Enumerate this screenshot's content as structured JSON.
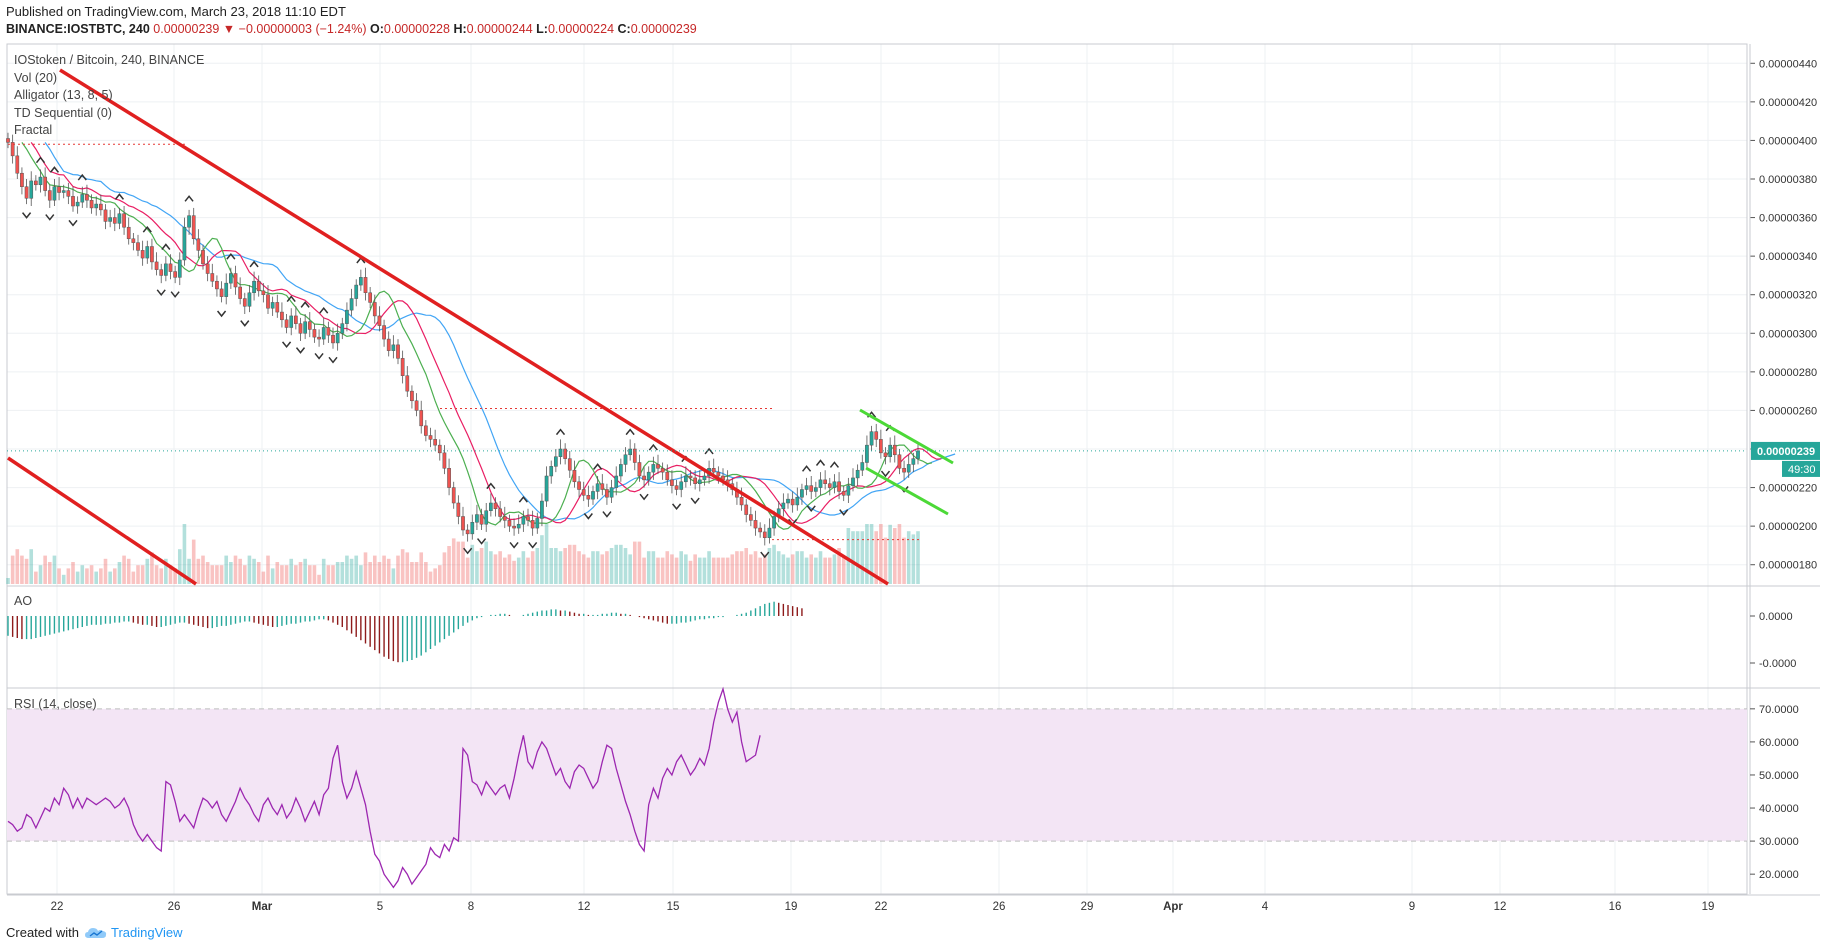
{
  "header": {
    "published": "Published on TradingView.com, March 23, 2018 11:10 EDT",
    "symbol": "BINANCE:IOSTBTC, 240",
    "last": "0.00000239",
    "change": "▼ −0.00000003 (−1.24%)",
    "o_label": "O:",
    "o": "0.00000228",
    "h_label": "H:",
    "h": "0.00000244",
    "l_label": "L:",
    "l": "0.00000224",
    "c_label": "C:",
    "c": "0.00000239"
  },
  "legend": {
    "title": "IOStoken / Bitcoin, 240, BINANCE",
    "vol": "Vol (20)",
    "alligator": "Alligator (13, 8, 5)",
    "td": "TD Sequential (0)",
    "fractal": "Fractal"
  },
  "panes": {
    "ao": "AO",
    "rsi": "RSI (14, close)"
  },
  "footer": {
    "created": "Created with",
    "brand": "TradingView"
  },
  "price_tag": {
    "value": "0.00000239",
    "timer": "49:30"
  },
  "colors": {
    "up": "#26a69a",
    "down": "#ef5350",
    "trendline": "#e02020",
    "channel": "#4cd937",
    "alligator_jaw": "#42a5f5",
    "alligator_teeth": "#e91e63",
    "alligator_lips": "#4caf50",
    "rsi_line": "#9c27b0",
    "rsi_band": "#f3e5f5",
    "td_up": "#1b8a2e",
    "td_down": "#d32f2f"
  },
  "chart_data": {
    "type": "candlestick",
    "price_axis": {
      "ylim": [
        1.7e-06,
        4.5e-06
      ],
      "ticks": [
        "0.00000180",
        "0.00000200",
        "0.00000220",
        "0.00000240",
        "0.00000260",
        "0.00000280",
        "0.00000300",
        "0.00000320",
        "0.00000340",
        "0.00000360",
        "0.00000380",
        "0.00000400",
        "0.00000420",
        "0.00000440"
      ]
    },
    "ao_axis": {
      "ticks": [
        "0.0000",
        "-0.0000"
      ]
    },
    "rsi_axis": {
      "ylim": [
        14,
        76
      ],
      "ticks": [
        "20.0000",
        "30.0000",
        "40.0000",
        "50.0000",
        "60.0000",
        "70.0000"
      ],
      "bands": [
        30,
        70
      ]
    },
    "x_ticks": [
      "22",
      "26",
      "Mar",
      "5",
      "8",
      "12",
      "15",
      "19",
      "22",
      "26",
      "29",
      "Apr",
      "4",
      "9",
      "12",
      "16",
      "19"
    ],
    "close_series": [
      399,
      392,
      383,
      376,
      370,
      379,
      377,
      381,
      374,
      369,
      376,
      373,
      374,
      371,
      366,
      368,
      372,
      369,
      365,
      367,
      364,
      358,
      360,
      357,
      362,
      355,
      349,
      347,
      343,
      339,
      345,
      337,
      333,
      330,
      336,
      332,
      329,
      338,
      355,
      361,
      349,
      343,
      336,
      331,
      327,
      323,
      319,
      326,
      331,
      324,
      318,
      314,
      321,
      327,
      322,
      320,
      313,
      316,
      311,
      307,
      303,
      309,
      305,
      300,
      306,
      302,
      298,
      297,
      303,
      299,
      295,
      300,
      305,
      312,
      318,
      325,
      329,
      321,
      316,
      309,
      304,
      297,
      291,
      294,
      287,
      278,
      270,
      265,
      260,
      252,
      247,
      245,
      242,
      238,
      230,
      220,
      212,
      205,
      198,
      196,
      202,
      206,
      201,
      208,
      212,
      209,
      205,
      203,
      200,
      199,
      201,
      205,
      203,
      199,
      204,
      213,
      226,
      231,
      236,
      240,
      235,
      229,
      223,
      219,
      216,
      214,
      218,
      222,
      219,
      215,
      220,
      226,
      232,
      237,
      240,
      233,
      226,
      224,
      228,
      232,
      230,
      228,
      224,
      221,
      219,
      223,
      226,
      225,
      222,
      224,
      226,
      230,
      228,
      226,
      224,
      222,
      219,
      215,
      211,
      206,
      203,
      199,
      197,
      194,
      199,
      205,
      209,
      212,
      214,
      211,
      215,
      219,
      221,
      218,
      220,
      224,
      222,
      220,
      223,
      218,
      216,
      221,
      225,
      229,
      233,
      242,
      249,
      245,
      238,
      236,
      242,
      237,
      230,
      228,
      232,
      235,
      239
    ],
    "ao_series": [
      -18,
      -19,
      -20,
      -21,
      -21,
      -21,
      -20,
      -19,
      -18,
      -17,
      -16,
      -15,
      -14,
      -13,
      -12,
      -11,
      -10,
      -9,
      -8,
      -8,
      -8,
      -7,
      -7,
      -6,
      -6,
      -5,
      -5,
      -6,
      -7,
      -8,
      -8,
      -9,
      -10,
      -10,
      -9,
      -8,
      -7,
      -6,
      -6,
      -7,
      -8,
      -9,
      -10,
      -11,
      -11,
      -10,
      -9,
      -9,
      -8,
      -7,
      -6,
      -5,
      -5,
      -6,
      -7,
      -8,
      -9,
      -10,
      -10,
      -9,
      -8,
      -7,
      -7,
      -6,
      -5,
      -5,
      -4,
      -3,
      -3,
      -4,
      -6,
      -8,
      -10,
      -13,
      -16,
      -19,
      -22,
      -25,
      -28,
      -31,
      -34,
      -37,
      -39,
      -41,
      -42,
      -42,
      -41,
      -40,
      -38,
      -36,
      -33,
      -30,
      -27,
      -24,
      -21,
      -18,
      -15,
      -12,
      -9,
      -6,
      -4,
      -2,
      -1,
      0,
      1,
      1,
      2,
      2,
      1,
      0,
      0,
      1,
      2,
      3,
      4,
      5,
      5,
      6,
      6,
      5,
      5,
      4,
      3,
      2,
      2,
      1,
      1,
      1,
      2,
      2,
      3,
      3,
      2,
      2,
      1,
      0,
      -1,
      -2,
      -3,
      -4,
      -5,
      -6,
      -7,
      -7,
      -7,
      -6,
      -6,
      -5,
      -4,
      -3,
      -3,
      -2,
      -2,
      -1,
      -1,
      0,
      0,
      1,
      2,
      3,
      5,
      7,
      9,
      11,
      12,
      13,
      12,
      11,
      10,
      9,
      8,
      7
    ],
    "rsi_series": [
      36,
      35,
      33,
      34,
      38,
      37,
      34,
      37,
      40,
      39,
      43,
      41,
      46,
      44,
      40,
      43,
      40,
      43,
      42,
      41,
      42,
      43,
      42,
      40,
      41,
      43,
      40,
      35,
      32,
      30,
      32,
      30,
      28,
      27,
      48,
      47,
      42,
      36,
      38,
      36,
      34,
      39,
      43,
      42,
      40,
      42,
      38,
      36,
      39,
      42,
      46,
      43,
      41,
      38,
      36,
      41,
      43,
      40,
      38,
      41,
      37,
      39,
      43,
      40,
      36,
      39,
      42,
      38,
      44,
      46,
      55,
      59,
      48,
      43,
      46,
      51,
      46,
      41,
      33,
      26,
      24,
      20,
      18,
      16,
      18,
      22,
      20,
      17,
      19,
      21,
      23,
      28,
      26,
      25,
      29,
      27,
      31,
      30,
      58,
      56,
      48,
      47,
      44,
      48,
      46,
      44,
      46,
      47,
      43,
      49,
      56,
      62,
      54,
      52,
      57,
      60,
      58,
      54,
      50,
      52,
      48,
      46,
      51,
      53,
      52,
      49,
      46,
      48,
      54,
      59,
      58,
      52,
      47,
      42,
      38,
      33,
      29,
      27,
      41,
      46,
      43,
      49,
      52,
      50,
      54,
      56,
      53,
      50,
      52,
      55,
      53,
      58,
      66,
      72,
      76,
      70,
      66,
      69,
      60,
      54,
      55,
      56,
      62
    ]
  }
}
